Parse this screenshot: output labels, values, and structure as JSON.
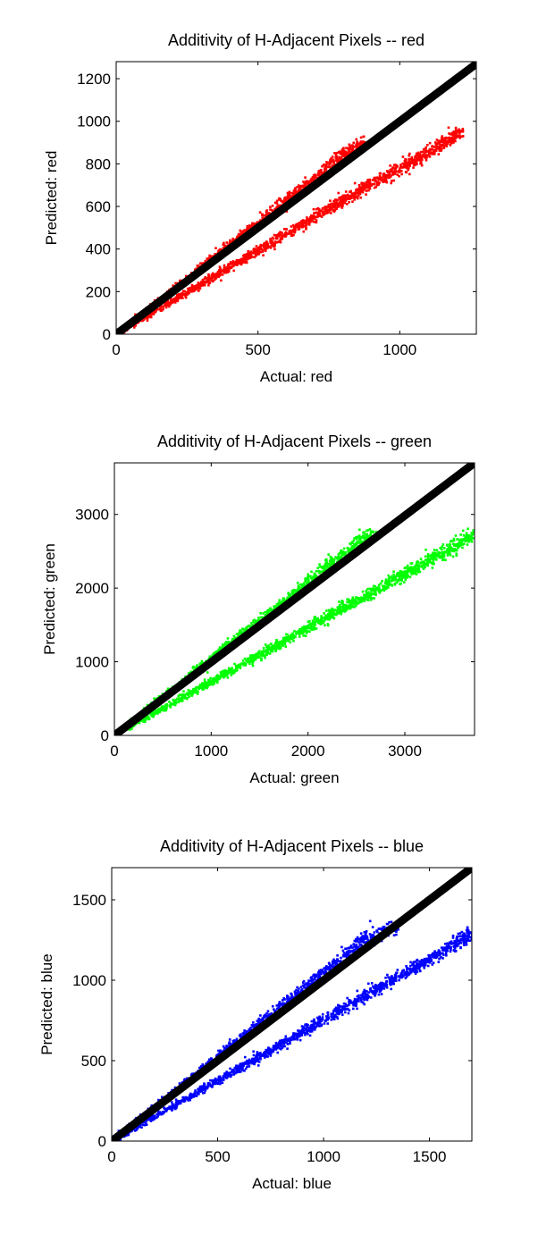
{
  "chart_data": [
    {
      "type": "scatter",
      "title": "Additivity of H-Adjacent Pixels -- red",
      "xlabel": "Actual: red",
      "ylabel": "Predicted: red",
      "xlim": [
        0,
        1270
      ],
      "ylim": [
        0,
        1280
      ],
      "xticks": [
        0,
        500,
        1000
      ],
      "yticks": [
        0,
        200,
        400,
        600,
        800,
        1000,
        1200
      ],
      "xtick_labels": [
        "0",
        "500",
        "1000"
      ],
      "ytick_labels": [
        "0",
        "200",
        "400",
        "600",
        "800",
        "1000",
        "1200"
      ],
      "grid": false,
      "color": "#ff0000",
      "reference_line_color": "#000000",
      "series": [
        {
          "x": [
            0,
            1270
          ],
          "y": [
            0,
            1270
          ]
        },
        {
          "x": [
            0,
            100,
            200,
            300,
            400,
            500,
            600,
            700,
            800,
            880
          ],
          "y": [
            0,
            104,
            208,
            313,
            418,
            523,
            628,
            733,
            838,
            900
          ]
        },
        {
          "x": [
            0,
            200,
            400,
            600,
            800,
            1000,
            1100,
            1220
          ],
          "y": [
            0,
            155,
            315,
            470,
            630,
            780,
            850,
            950
          ]
        }
      ]
    },
    {
      "type": "scatter",
      "title": "Additivity of H-Adjacent Pixels -- green",
      "xlabel": "Actual: green",
      "ylabel": "Predicted: green",
      "xlim": [
        0,
        3720
      ],
      "ylim": [
        0,
        3700
      ],
      "xticks": [
        0,
        1000,
        2000,
        3000
      ],
      "yticks": [
        0,
        1000,
        2000,
        3000
      ],
      "xtick_labels": [
        "0",
        "1000",
        "2000",
        "3000"
      ],
      "ytick_labels": [
        "0",
        "1000",
        "2000",
        "3000"
      ],
      "grid": false,
      "color": "#00ff00",
      "reference_line_color": "#000000",
      "series": [
        {
          "x": [
            0,
            3720
          ],
          "y": [
            0,
            3700
          ]
        },
        {
          "x": [
            0,
            500,
            1000,
            1500,
            2000,
            2500,
            2680
          ],
          "y": [
            0,
            520,
            1040,
            1560,
            2080,
            2600,
            2760
          ]
        },
        {
          "x": [
            0,
            500,
            1000,
            1500,
            2000,
            2500,
            3000,
            3500,
            3720
          ],
          "y": [
            0,
            365,
            730,
            1090,
            1460,
            1830,
            2190,
            2560,
            2730
          ]
        }
      ]
    },
    {
      "type": "scatter",
      "title": "Additivity of H-Adjacent Pixels -- blue",
      "xlabel": "Actual: blue",
      "ylabel": "Predicted: blue",
      "xlim": [
        0,
        1700
      ],
      "ylim": [
        0,
        1700
      ],
      "xticks": [
        0,
        500,
        1000,
        1500
      ],
      "yticks": [
        0,
        500,
        1000,
        1500
      ],
      "xtick_labels": [
        "0",
        "500",
        "1000",
        "1500"
      ],
      "ytick_labels": [
        "0",
        "500",
        "1000",
        "1500"
      ],
      "grid": false,
      "color": "#0000ff",
      "reference_line_color": "#000000",
      "series": [
        {
          "x": [
            0,
            1700
          ],
          "y": [
            0,
            1700
          ]
        },
        {
          "x": [
            0,
            300,
            600,
            900,
            1200,
            1350
          ],
          "y": [
            0,
            315,
            630,
            945,
            1260,
            1330
          ]
        },
        {
          "x": [
            0,
            300,
            600,
            900,
            1200,
            1500,
            1700
          ],
          "y": [
            0,
            225,
            450,
            675,
            905,
            1130,
            1290
          ]
        }
      ]
    }
  ]
}
